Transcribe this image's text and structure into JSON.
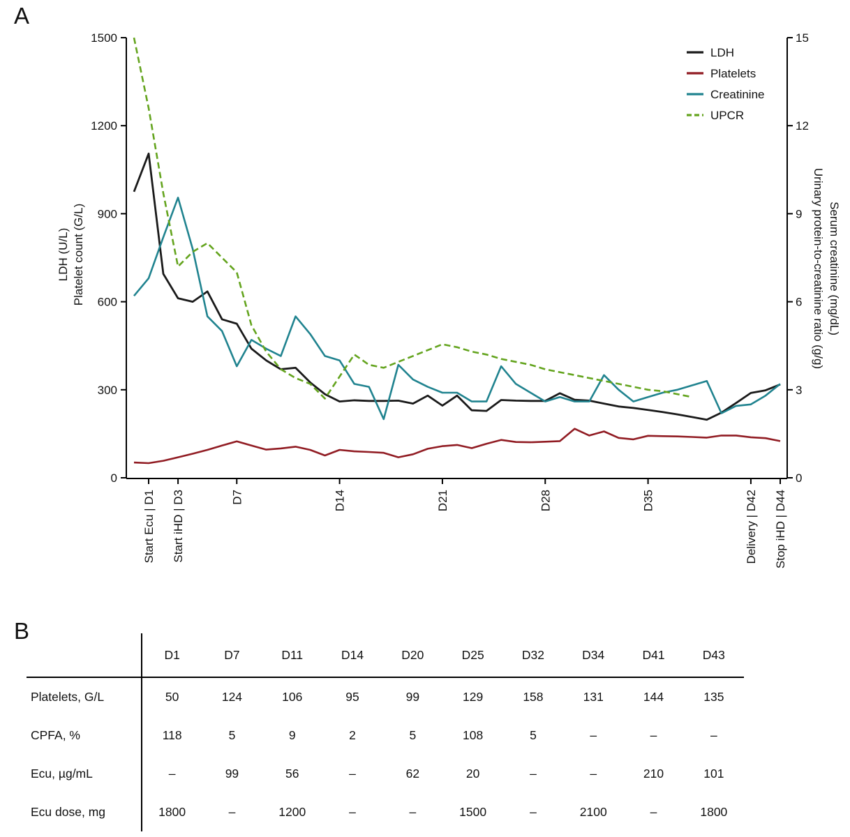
{
  "panel_a": {
    "label": "A"
  },
  "panel_b": {
    "label": "B",
    "table": {
      "columns": [
        "D1",
        "D7",
        "D11",
        "D14",
        "D20",
        "D25",
        "D32",
        "D34",
        "D41",
        "D43"
      ],
      "rows": [
        {
          "label": "Platelets, G/L",
          "values": [
            "50",
            "124",
            "106",
            "95",
            "99",
            "129",
            "158",
            "131",
            "144",
            "135"
          ]
        },
        {
          "label": "CPFA, %",
          "values": [
            "118",
            "5",
            "9",
            "2",
            "5",
            "108",
            "5",
            "–",
            "–",
            "–"
          ]
        },
        {
          "label": "Ecu, µg/mL",
          "values": [
            "–",
            "99",
            "56",
            "–",
            "62",
            "20",
            "–",
            "–",
            "210",
            "101"
          ]
        },
        {
          "label": "Ecu dose, mg",
          "values": [
            "1800",
            "–",
            "1200",
            "–",
            "–",
            "1500",
            "–",
            "2100",
            "–",
            "1800"
          ]
        }
      ]
    }
  },
  "chart_data": {
    "type": "line",
    "x_unit": "day",
    "x_range": [
      0,
      44
    ],
    "left_axis": {
      "title_lines": [
        "LDH (U/L)",
        "Platelet count (G/L)"
      ],
      "ticks": [
        0,
        300,
        600,
        900,
        1200,
        1500
      ],
      "range": [
        0,
        1500
      ]
    },
    "right_axis": {
      "title_lines": [
        "Serum creatinine (mg/dL)",
        "Urinary protein-to-creatinine ratio (g/g)"
      ],
      "ticks": [
        0,
        3,
        6,
        9,
        12,
        15
      ],
      "range": [
        0,
        15
      ]
    },
    "x_ticks": [
      {
        "day": 1,
        "label": "Start Ecu | D1"
      },
      {
        "day": 3,
        "label": "Start iHD | D3"
      },
      {
        "day": 7,
        "label": "D7"
      },
      {
        "day": 14,
        "label": "D14"
      },
      {
        "day": 21,
        "label": "D21"
      },
      {
        "day": 28,
        "label": "D28"
      },
      {
        "day": 35,
        "label": "D35"
      },
      {
        "day": 42,
        "label": "Delivery | D42"
      },
      {
        "day": 44,
        "label": "Stop iHD | D44"
      }
    ],
    "legend_position": "top-right",
    "series": [
      {
        "name": "LDH",
        "axis": "left",
        "color": "#1a1a1a",
        "dashed": false,
        "start_day": 0,
        "values": [
          975,
          1105,
          695,
          612,
          600,
          635,
          540,
          525,
          440,
          400,
          370,
          375,
          325,
          285,
          260,
          264,
          262,
          262,
          263,
          253,
          280,
          246,
          280,
          230,
          228,
          265,
          263,
          262,
          262,
          288,
          266,
          263,
          253,
          243,
          238,
          231,
          224,
          216,
          207,
          198,
          222,
          255,
          289,
          298,
          318
        ]
      },
      {
        "name": "Platelets",
        "axis": "left",
        "color": "#911c23",
        "dashed": false,
        "start_day": 0,
        "values": [
          52,
          50,
          58,
          70,
          82,
          95,
          110,
          124,
          110,
          96,
          100,
          106,
          95,
          76,
          95,
          90,
          88,
          85,
          70,
          80,
          99,
          108,
          112,
          101,
          116,
          129,
          122,
          121,
          123,
          125,
          167,
          144,
          158,
          136,
          131,
          143,
          142,
          141,
          139,
          137,
          144,
          144,
          138,
          135,
          125
        ]
      },
      {
        "name": "Creatinine",
        "axis": "right",
        "color": "#20838f",
        "dashed": false,
        "start_day": 0,
        "values": [
          6.2,
          6.8,
          8.2,
          9.55,
          7.8,
          5.5,
          5.0,
          3.8,
          4.7,
          4.4,
          4.15,
          5.5,
          4.9,
          4.15,
          4.0,
          3.2,
          3.1,
          2.0,
          3.85,
          3.35,
          3.1,
          2.9,
          2.9,
          2.6,
          2.6,
          3.8,
          3.2,
          2.9,
          2.6,
          2.75,
          2.6,
          2.6,
          3.5,
          3.0,
          2.6,
          2.75,
          2.9,
          3.0,
          3.15,
          3.3,
          2.2,
          2.45,
          2.5,
          2.8,
          3.2
        ]
      },
      {
        "name": "UPCR",
        "axis": "right",
        "color": "#64a41e",
        "dashed": true,
        "start_day": 0,
        "values": [
          15.0,
          12.6,
          9.7,
          7.2,
          7.7,
          8.0,
          7.5,
          7.0,
          5.2,
          4.3,
          3.7,
          3.4,
          3.2,
          2.7,
          3.45,
          4.2,
          3.85,
          3.75,
          3.95,
          4.15,
          4.35,
          4.55,
          4.45,
          4.3,
          4.2,
          4.05,
          3.95,
          3.85,
          3.7,
          3.6,
          3.5,
          3.4,
          3.3,
          3.2,
          3.1,
          3.0,
          2.95,
          2.85,
          2.75
        ]
      }
    ]
  }
}
